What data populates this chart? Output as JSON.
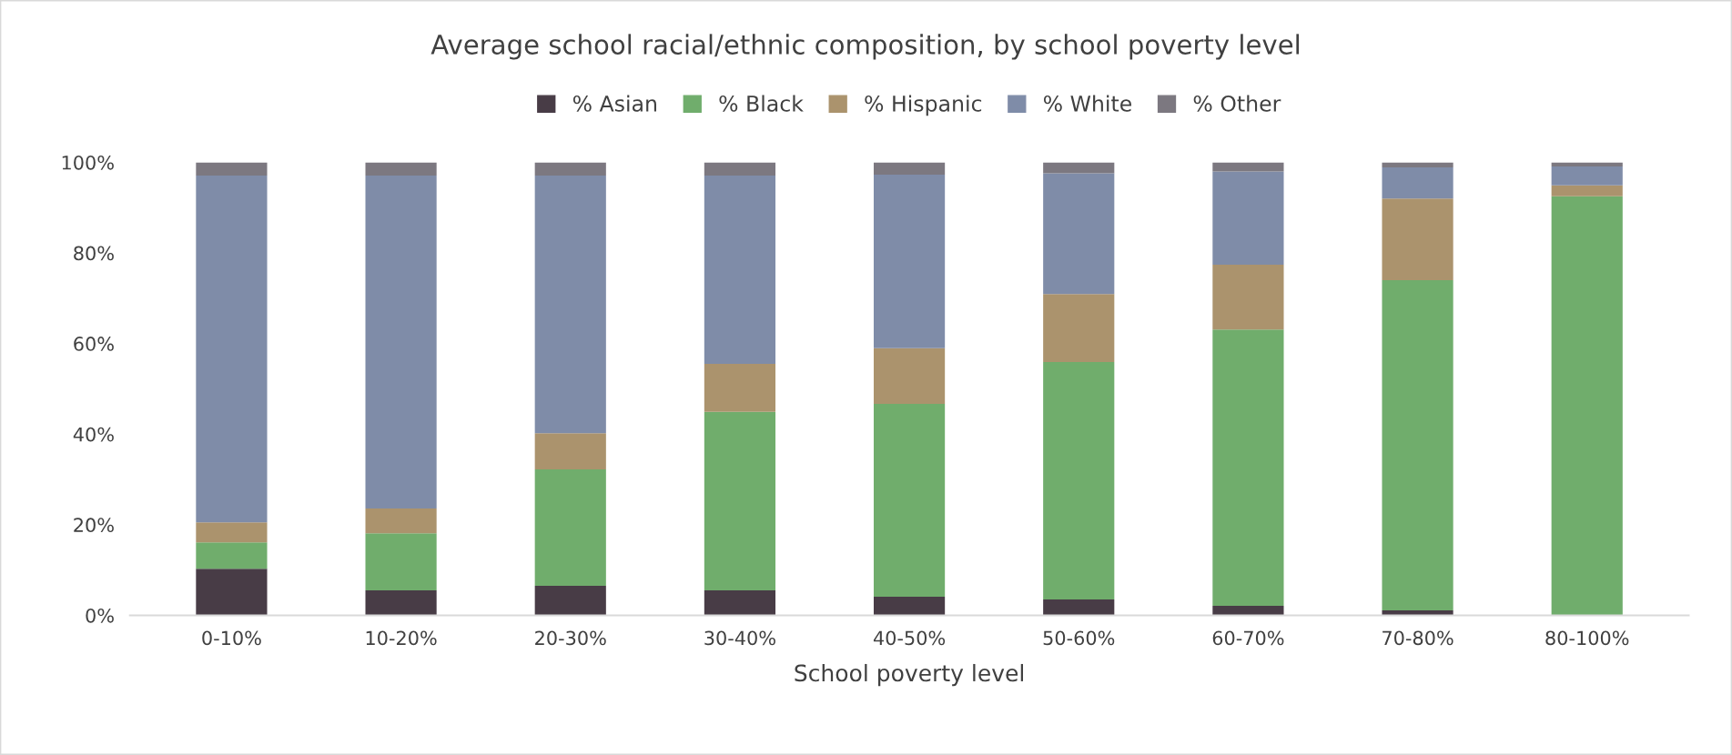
{
  "chart_data": {
    "type": "bar",
    "stacked": true,
    "title": "Average school racial/ethnic composition, by school poverty level",
    "xlabel": "School poverty level",
    "categories": [
      "0-10%",
      "10-20%",
      "20-30%",
      "30-40%",
      "40-50%",
      "50-60%",
      "60-70%",
      "70-80%",
      "80-100%"
    ],
    "series": [
      {
        "name": "% Asian",
        "color": "#483c46",
        "values": [
          10.3,
          5.5,
          6.5,
          5.5,
          4.1,
          3.5,
          2.1,
          1.1,
          0
        ]
      },
      {
        "name": "% Black",
        "color": "#70ad6c",
        "values": [
          5.8,
          12.6,
          25.7,
          39.4,
          42.6,
          52.4,
          61.0,
          72.9,
          92.5
        ]
      },
      {
        "name": "% Hispanic",
        "color": "#ab936d",
        "values": [
          4.4,
          5.5,
          8.0,
          10.6,
          12.3,
          15.0,
          14.3,
          18.0,
          2.4
        ]
      },
      {
        "name": "% White",
        "color": "#7f8ca8",
        "values": [
          76.6,
          73.5,
          56.9,
          41.6,
          38.3,
          26.7,
          20.6,
          6.9,
          4.2
        ]
      },
      {
        "name": "% Other",
        "color": "#7c7880",
        "values": [
          2.9,
          2.9,
          2.9,
          2.9,
          2.7,
          2.4,
          2.0,
          1.1,
          0.9
        ]
      }
    ],
    "ylim": [
      0,
      100
    ],
    "yticks": [
      {
        "value": 0,
        "label": "0%"
      },
      {
        "value": 20,
        "label": "20%"
      },
      {
        "value": 40,
        "label": "40%"
      },
      {
        "value": 60,
        "label": "60%"
      },
      {
        "value": 80,
        "label": "80%"
      },
      {
        "value": 100,
        "label": "100%"
      }
    ],
    "legend": "top",
    "grid": false
  }
}
